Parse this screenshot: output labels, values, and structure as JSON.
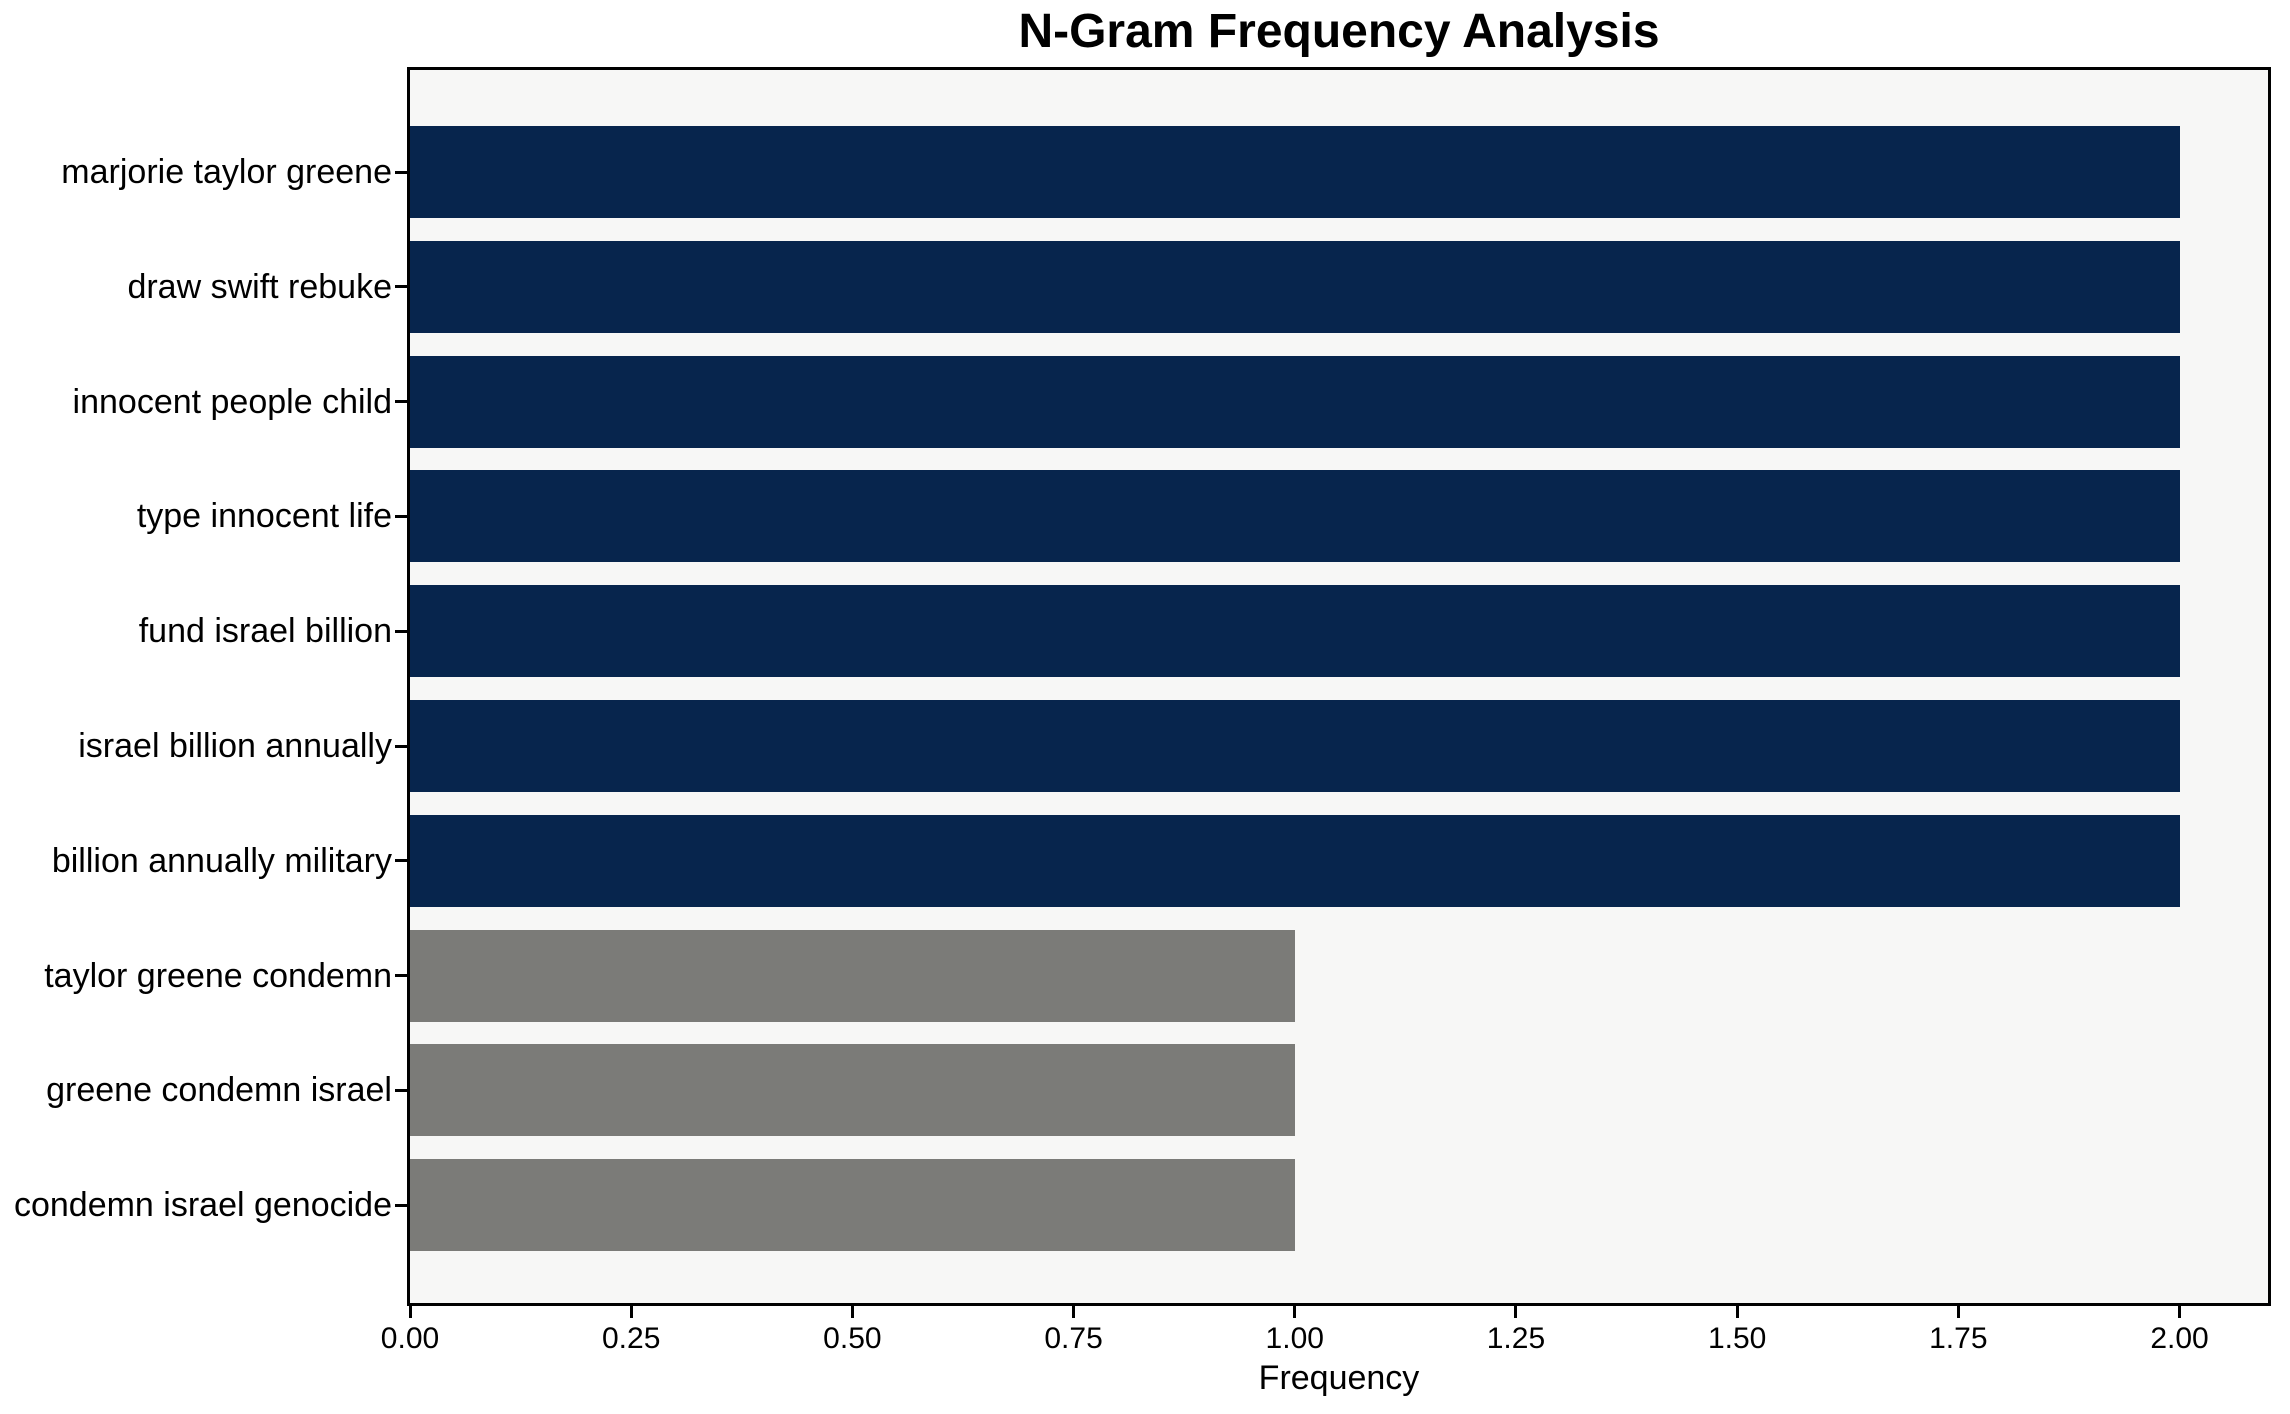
{
  "chart_data": {
    "type": "bar",
    "orientation": "horizontal",
    "title": "N-Gram Frequency Analysis",
    "xlabel": "Frequency",
    "ylabel": "",
    "categories": [
      "marjorie taylor greene",
      "draw swift rebuke",
      "innocent people child",
      "type innocent life",
      "fund israel billion",
      "israel billion annually",
      "billion annually military",
      "taylor greene condemn",
      "greene condemn israel",
      "condemn israel genocide"
    ],
    "values": [
      2,
      2,
      2,
      2,
      2,
      2,
      2,
      1,
      1,
      1
    ],
    "bar_colors": [
      "#07254d",
      "#07254d",
      "#07254d",
      "#07254d",
      "#07254d",
      "#07254d",
      "#07254d",
      "#7b7b78",
      "#7b7b78",
      "#7b7b78"
    ],
    "xlim": [
      0,
      2.1
    ],
    "xticks": [
      {
        "value": 0.0,
        "label": "0.00"
      },
      {
        "value": 0.25,
        "label": "0.25"
      },
      {
        "value": 0.5,
        "label": "0.50"
      },
      {
        "value": 0.75,
        "label": "0.75"
      },
      {
        "value": 1.0,
        "label": "1.00"
      },
      {
        "value": 1.25,
        "label": "1.25"
      },
      {
        "value": 1.5,
        "label": "1.50"
      },
      {
        "value": 1.75,
        "label": "1.75"
      },
      {
        "value": 2.0,
        "label": "2.00"
      }
    ],
    "grid": false,
    "legend": null,
    "colors": {
      "bar_high_frequency": "#07254d",
      "bar_low_frequency": "#7b7b78",
      "plot_background": "#f7f7f6",
      "figure_background": "#ffffff",
      "spine": "#000000",
      "text": "#000000"
    }
  }
}
